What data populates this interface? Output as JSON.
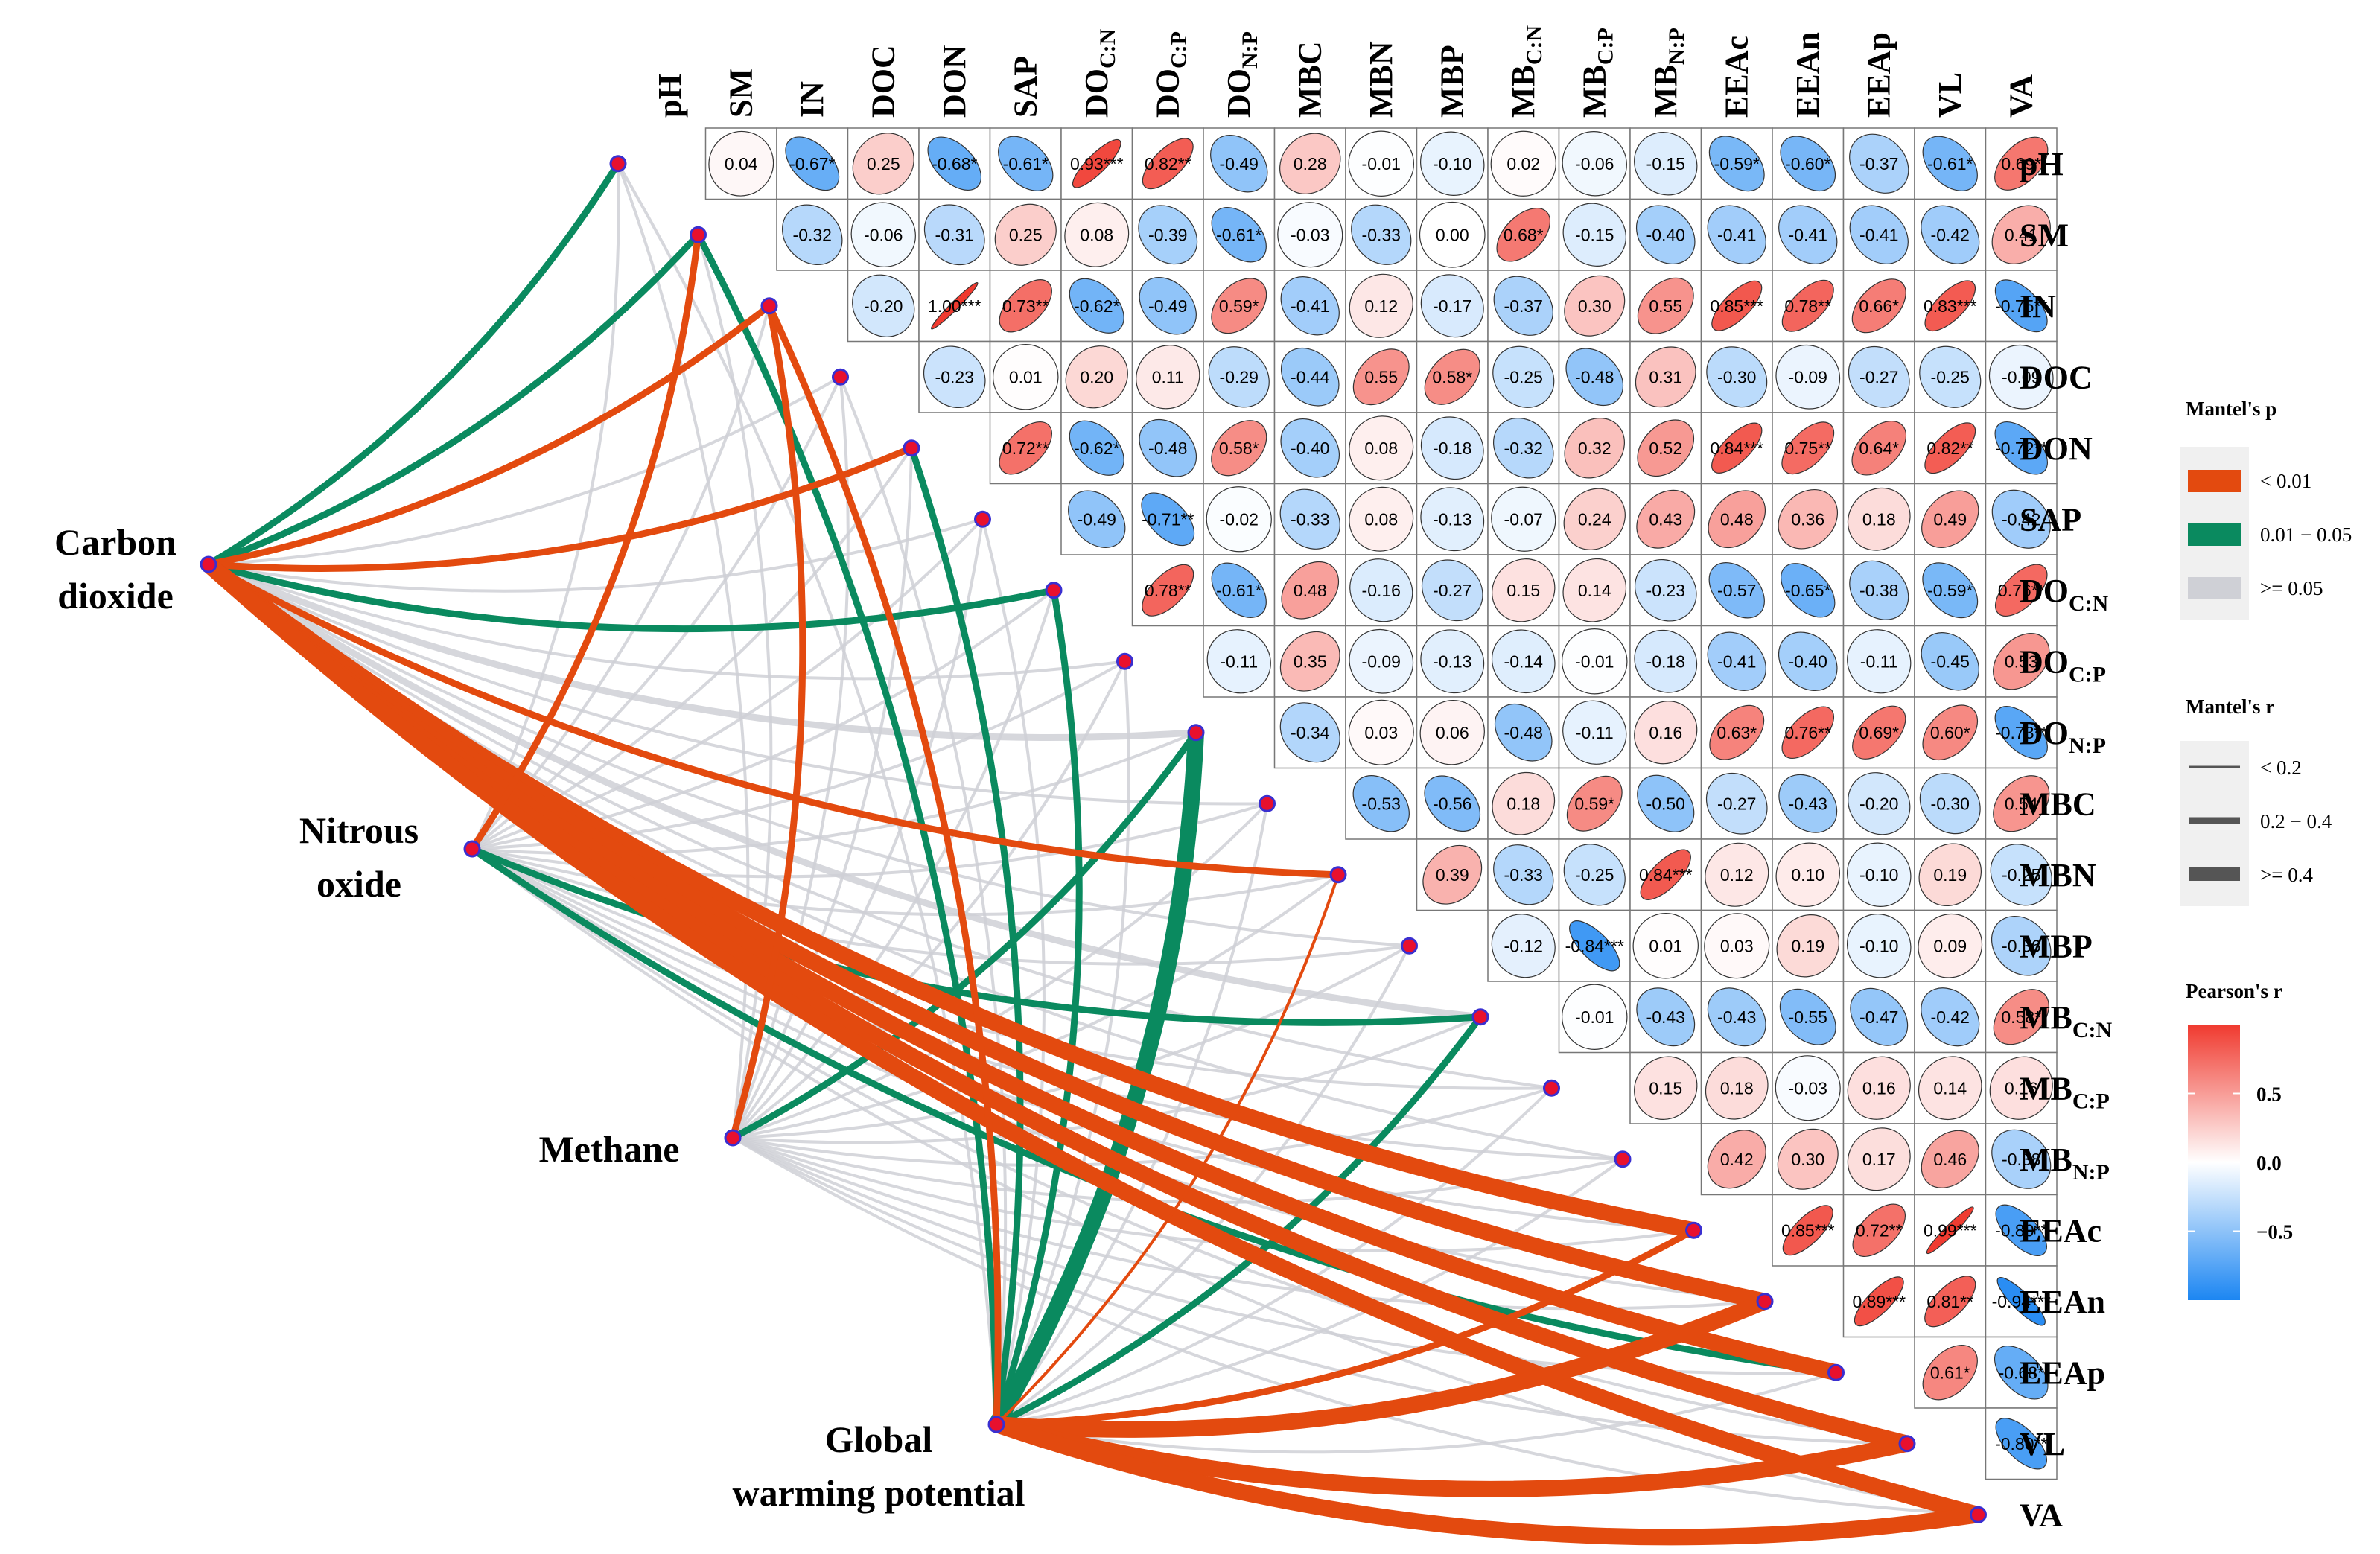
{
  "chart_data": {
    "type": "heatmap",
    "variables": [
      "pH",
      "SM",
      "IN",
      "DOC",
      "DON",
      "SAP",
      "DOC:N",
      "DOC:P",
      "DON:P",
      "MBC",
      "MBN",
      "MBP",
      "MBC:N",
      "MBC:P",
      "MBN:P",
      "EEAc",
      "EEAn",
      "EEAp",
      "VL",
      "VA"
    ],
    "labels": [
      {
        "main": "pH",
        "sub": ""
      },
      {
        "main": "SM",
        "sub": ""
      },
      {
        "main": "IN",
        "sub": ""
      },
      {
        "main": "DOC",
        "sub": ""
      },
      {
        "main": "DON",
        "sub": ""
      },
      {
        "main": "SAP",
        "sub": ""
      },
      {
        "main": "DO",
        "sub": "C:N"
      },
      {
        "main": "DO",
        "sub": "C:P"
      },
      {
        "main": "DO",
        "sub": "N:P"
      },
      {
        "main": "MBC",
        "sub": ""
      },
      {
        "main": "MBN",
        "sub": ""
      },
      {
        "main": "MBP",
        "sub": ""
      },
      {
        "main": "MB",
        "sub": "C:N"
      },
      {
        "main": "MB",
        "sub": "C:P"
      },
      {
        "main": "MB",
        "sub": "N:P"
      },
      {
        "main": "EEAc",
        "sub": ""
      },
      {
        "main": "EEAn",
        "sub": ""
      },
      {
        "main": "EEAp",
        "sub": ""
      },
      {
        "main": "VL",
        "sub": ""
      },
      {
        "main": "VA",
        "sub": ""
      }
    ],
    "correlation_rows": [
      [
        "0.04",
        "-0.67*",
        "0.25",
        "-0.68*",
        "-0.61*",
        "0.93***",
        "0.82**",
        "-0.49",
        "0.28",
        "-0.01",
        "-0.10",
        "0.02",
        "-0.06",
        "-0.15",
        "-0.59*",
        "-0.60*",
        "-0.37",
        "-0.61*",
        "0.69*"
      ],
      [
        "-0.32",
        "-0.06",
        "-0.31",
        "0.25",
        "0.08",
        "-0.39",
        "-0.61*",
        "-0.03",
        "-0.33",
        "0.00",
        "0.68*",
        "-0.15",
        "-0.40",
        "-0.41",
        "-0.41",
        "-0.41",
        "-0.42",
        "0.41"
      ],
      [
        "-0.20",
        "1.00***",
        "0.73**",
        "-0.62*",
        "-0.49",
        "0.59*",
        "-0.41",
        "0.12",
        "-0.17",
        "-0.37",
        "0.30",
        "0.55",
        "0.85***",
        "0.78**",
        "0.66*",
        "0.83***",
        "-0.75**"
      ],
      [
        "-0.23",
        "0.01",
        "0.20",
        "0.11",
        "-0.29",
        "-0.44",
        "0.55",
        "0.58*",
        "-0.25",
        "-0.48",
        "0.31",
        "-0.30",
        "-0.09",
        "-0.27",
        "-0.25",
        "-0.09"
      ],
      [
        "0.72**",
        "-0.62*",
        "-0.48",
        "0.58*",
        "-0.40",
        "0.08",
        "-0.18",
        "-0.32",
        "0.32",
        "0.52",
        "0.84***",
        "0.75**",
        "0.64*",
        "0.82**",
        "-0.72**"
      ],
      [
        "-0.49",
        "-0.71**",
        "-0.02",
        "-0.33",
        "0.08",
        "-0.13",
        "-0.07",
        "0.24",
        "0.43",
        "0.48",
        "0.36",
        "0.18",
        "0.49",
        "-0.42"
      ],
      [
        "0.78**",
        "-0.61*",
        "0.48",
        "-0.16",
        "-0.27",
        "0.15",
        "0.14",
        "-0.23",
        "-0.57",
        "-0.65*",
        "-0.38",
        "-0.59*",
        "0.76**"
      ],
      [
        "-0.11",
        "0.35",
        "-0.09",
        "-0.13",
        "-0.14",
        "-0.01",
        "-0.18",
        "-0.41",
        "-0.40",
        "-0.11",
        "-0.45",
        "0.53"
      ],
      [
        "-0.34",
        "0.03",
        "0.06",
        "-0.48",
        "-0.11",
        "0.16",
        "0.63*",
        "0.76**",
        "0.69*",
        "0.60*",
        "-0.73**"
      ],
      [
        "-0.53",
        "-0.56",
        "0.18",
        "0.59*",
        "-0.50",
        "-0.27",
        "-0.43",
        "-0.20",
        "-0.30",
        "0.54"
      ],
      [
        "0.39",
        "-0.33",
        "-0.25",
        "0.84***",
        "0.12",
        "0.10",
        "-0.10",
        "0.19",
        "-0.25"
      ],
      [
        "-0.12",
        "-0.84***",
        "0.01",
        "0.03",
        "0.19",
        "-0.10",
        "0.09",
        "-0.36"
      ],
      [
        "-0.01",
        "-0.43",
        "-0.43",
        "-0.55",
        "-0.47",
        "-0.42",
        "0.58*"
      ],
      [
        "0.15",
        "0.18",
        "-0.03",
        "0.16",
        "0.14",
        "0.16"
      ],
      [
        "0.42",
        "0.30",
        "0.17",
        "0.46",
        "-0.38"
      ],
      [
        "0.85***",
        "0.72**",
        "0.99***",
        "-0.80**"
      ],
      [
        "0.89***",
        "0.81**",
        "-0.94***"
      ],
      [
        "0.61*",
        "-0.68*"
      ],
      [
        "-0.80**"
      ]
    ],
    "mantel_sources": [
      {
        "name": "Carbon dioxide",
        "lines": [
          "Carbon",
          "dioxide"
        ]
      },
      {
        "name": "Nitrous oxide",
        "lines": [
          "Nitrous",
          "oxide"
        ]
      },
      {
        "name": "Methane",
        "lines": [
          "Methane"
        ]
      },
      {
        "name": "Global warming potential",
        "lines": [
          "Global",
          "warming potential"
        ]
      }
    ],
    "mantel_links": [
      {
        "from": 0,
        "to": "pH",
        "p": "mid",
        "r": "mid"
      },
      {
        "from": 0,
        "to": "SM",
        "p": "mid",
        "r": "mid"
      },
      {
        "from": 0,
        "to": "IN",
        "p": "low",
        "r": "mid"
      },
      {
        "from": 0,
        "to": "DOC",
        "p": "ns",
        "r": "small"
      },
      {
        "from": 0,
        "to": "DON",
        "p": "low",
        "r": "mid"
      },
      {
        "from": 0,
        "to": "SAP",
        "p": "ns",
        "r": "small"
      },
      {
        "from": 0,
        "to": "DOC:N",
        "p": "mid",
        "r": "mid"
      },
      {
        "from": 0,
        "to": "DOC:P",
        "p": "ns",
        "r": "small"
      },
      {
        "from": 0,
        "to": "DON:P",
        "p": "ns",
        "r": "mid"
      },
      {
        "from": 0,
        "to": "MBC",
        "p": "ns",
        "r": "small"
      },
      {
        "from": 0,
        "to": "MBN",
        "p": "low",
        "r": "mid"
      },
      {
        "from": 0,
        "to": "MBP",
        "p": "ns",
        "r": "small"
      },
      {
        "from": 0,
        "to": "MBC:N",
        "p": "ns",
        "r": "mid"
      },
      {
        "from": 0,
        "to": "MBC:P",
        "p": "ns",
        "r": "small"
      },
      {
        "from": 0,
        "to": "MBN:P",
        "p": "ns",
        "r": "small"
      },
      {
        "from": 0,
        "to": "EEAc",
        "p": "low",
        "r": "large"
      },
      {
        "from": 0,
        "to": "EEAn",
        "p": "low",
        "r": "large"
      },
      {
        "from": 0,
        "to": "EEAp",
        "p": "low",
        "r": "large"
      },
      {
        "from": 0,
        "to": "VL",
        "p": "low",
        "r": "large"
      },
      {
        "from": 0,
        "to": "VA",
        "p": "low",
        "r": "large"
      },
      {
        "from": 1,
        "to": "pH",
        "p": "ns",
        "r": "small"
      },
      {
        "from": 1,
        "to": "SM",
        "p": "low",
        "r": "mid"
      },
      {
        "from": 1,
        "to": "IN",
        "p": "ns",
        "r": "small"
      },
      {
        "from": 1,
        "to": "DOC",
        "p": "ns",
        "r": "small"
      },
      {
        "from": 1,
        "to": "DON",
        "p": "ns",
        "r": "small"
      },
      {
        "from": 1,
        "to": "SAP",
        "p": "ns",
        "r": "small"
      },
      {
        "from": 1,
        "to": "DOC:N",
        "p": "ns",
        "r": "small"
      },
      {
        "from": 1,
        "to": "DOC:P",
        "p": "ns",
        "r": "small"
      },
      {
        "from": 1,
        "to": "DON:P",
        "p": "ns",
        "r": "small"
      },
      {
        "from": 1,
        "to": "MBC",
        "p": "ns",
        "r": "small"
      },
      {
        "from": 1,
        "to": "MBN",
        "p": "ns",
        "r": "small"
      },
      {
        "from": 1,
        "to": "MBP",
        "p": "ns",
        "r": "small"
      },
      {
        "from": 1,
        "to": "MBC:N",
        "p": "mid",
        "r": "mid"
      },
      {
        "from": 1,
        "to": "MBC:P",
        "p": "ns",
        "r": "small"
      },
      {
        "from": 1,
        "to": "MBN:P",
        "p": "ns",
        "r": "small"
      },
      {
        "from": 1,
        "to": "EEAc",
        "p": "ns",
        "r": "small"
      },
      {
        "from": 1,
        "to": "EEAn",
        "p": "ns",
        "r": "small"
      },
      {
        "from": 1,
        "to": "EEAp",
        "p": "mid",
        "r": "mid"
      },
      {
        "from": 1,
        "to": "VL",
        "p": "ns",
        "r": "small"
      },
      {
        "from": 1,
        "to": "VA",
        "p": "ns",
        "r": "small"
      },
      {
        "from": 2,
        "to": "pH",
        "p": "ns",
        "r": "small"
      },
      {
        "from": 2,
        "to": "SM",
        "p": "ns",
        "r": "small"
      },
      {
        "from": 2,
        "to": "IN",
        "p": "low",
        "r": "mid"
      },
      {
        "from": 2,
        "to": "DOC",
        "p": "ns",
        "r": "small"
      },
      {
        "from": 2,
        "to": "DON",
        "p": "ns",
        "r": "small"
      },
      {
        "from": 2,
        "to": "SAP",
        "p": "ns",
        "r": "small"
      },
      {
        "from": 2,
        "to": "DOC:N",
        "p": "ns",
        "r": "small"
      },
      {
        "from": 2,
        "to": "DOC:P",
        "p": "ns",
        "r": "small"
      },
      {
        "from": 2,
        "to": "DON:P",
        "p": "mid",
        "r": "mid"
      },
      {
        "from": 2,
        "to": "MBC",
        "p": "ns",
        "r": "small"
      },
      {
        "from": 2,
        "to": "MBN",
        "p": "ns",
        "r": "small"
      },
      {
        "from": 2,
        "to": "MBP",
        "p": "ns",
        "r": "small"
      },
      {
        "from": 2,
        "to": "MBC:N",
        "p": "ns",
        "r": "small"
      },
      {
        "from": 2,
        "to": "MBC:P",
        "p": "ns",
        "r": "small"
      },
      {
        "from": 2,
        "to": "MBN:P",
        "p": "ns",
        "r": "small"
      },
      {
        "from": 2,
        "to": "EEAc",
        "p": "ns",
        "r": "small"
      },
      {
        "from": 2,
        "to": "EEAn",
        "p": "ns",
        "r": "small"
      },
      {
        "from": 2,
        "to": "EEAp",
        "p": "ns",
        "r": "small"
      },
      {
        "from": 2,
        "to": "VL",
        "p": "ns",
        "r": "small"
      },
      {
        "from": 2,
        "to": "VA",
        "p": "ns",
        "r": "small"
      },
      {
        "from": 3,
        "to": "pH",
        "p": "ns",
        "r": "small"
      },
      {
        "from": 3,
        "to": "SM",
        "p": "mid",
        "r": "mid"
      },
      {
        "from": 3,
        "to": "IN",
        "p": "low",
        "r": "mid"
      },
      {
        "from": 3,
        "to": "DOC",
        "p": "ns",
        "r": "small"
      },
      {
        "from": 3,
        "to": "DON",
        "p": "mid",
        "r": "mid"
      },
      {
        "from": 3,
        "to": "SAP",
        "p": "ns",
        "r": "small"
      },
      {
        "from": 3,
        "to": "DOC:N",
        "p": "mid",
        "r": "mid"
      },
      {
        "from": 3,
        "to": "DOC:P",
        "p": "ns",
        "r": "small"
      },
      {
        "from": 3,
        "to": "DON:P",
        "p": "mid",
        "r": "large"
      },
      {
        "from": 3,
        "to": "MBC",
        "p": "ns",
        "r": "small"
      },
      {
        "from": 3,
        "to": "MBN",
        "p": "low",
        "r": "small"
      },
      {
        "from": 3,
        "to": "MBP",
        "p": "ns",
        "r": "small"
      },
      {
        "from": 3,
        "to": "MBC:N",
        "p": "mid",
        "r": "mid"
      },
      {
        "from": 3,
        "to": "MBC:P",
        "p": "ns",
        "r": "small"
      },
      {
        "from": 3,
        "to": "MBN:P",
        "p": "ns",
        "r": "small"
      },
      {
        "from": 3,
        "to": "EEAc",
        "p": "low",
        "r": "mid"
      },
      {
        "from": 3,
        "to": "EEAn",
        "p": "low",
        "r": "large"
      },
      {
        "from": 3,
        "to": "EEAp",
        "p": "ns",
        "r": "small"
      },
      {
        "from": 3,
        "to": "VL",
        "p": "low",
        "r": "large"
      },
      {
        "from": 3,
        "to": "VA",
        "p": "low",
        "r": "large"
      }
    ],
    "legend": {
      "mantel_p": {
        "title": "Mantel's p",
        "items": [
          {
            "label": "< 0.01",
            "color": "#e34a0f"
          },
          {
            "label": "0.01 − 0.05",
            "color": "#0a8a5f"
          },
          {
            "label": ">= 0.05",
            "color": "#cfd0d6"
          }
        ]
      },
      "mantel_r": {
        "title": "Mantel's r",
        "items": [
          "< 0.2",
          "0.2 − 0.4",
          ">= 0.4"
        ]
      },
      "pearson": {
        "title": "Pearson's r",
        "ticks": [
          "0.5",
          "0.0",
          "−0.5"
        ],
        "range": [
          -1,
          1
        ]
      }
    },
    "colors": {
      "low": "#e34a0f",
      "mid": "#0a8a5f",
      "ns": "#cfd0d6",
      "pos": "#f45a4b",
      "neg": "#2f8bf0",
      "grid": "#666666"
    }
  }
}
